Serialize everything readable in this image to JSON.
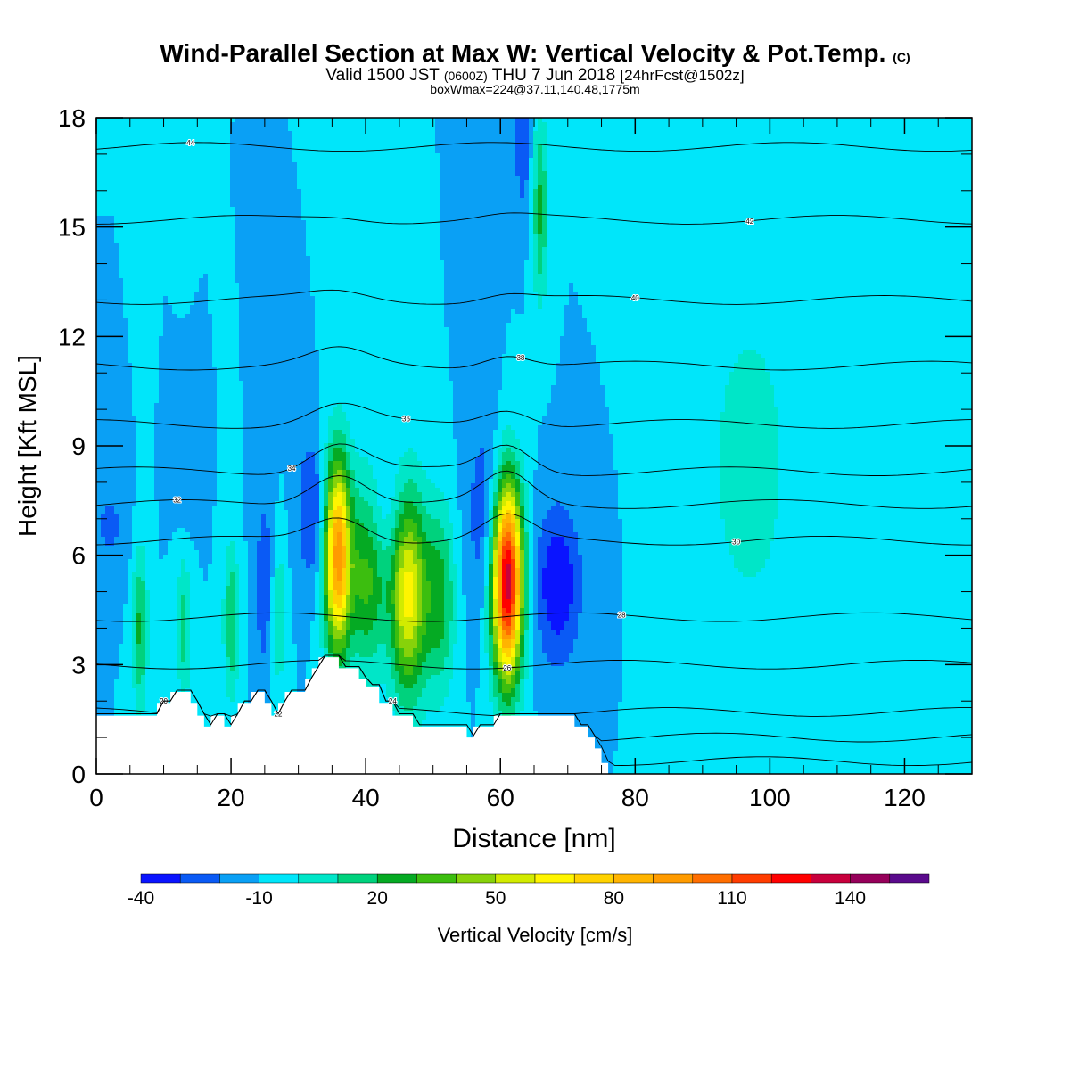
{
  "header": {
    "title": "Wind-Parallel Section at Max W: Vertical Velocity & Pot.Temp.",
    "title_mark": "(C)",
    "subtitle_pre": "Valid 1500 JST",
    "subtitle_zulu": "(0600Z)",
    "subtitle_date": "THU 7 Jun 2018",
    "subtitle_fcst": "[24hrFcst@1502z]",
    "subline": "boxWmax=224@37.11,140.48,1775m"
  },
  "chart_data": {
    "type": "heatmap",
    "xlabel": "Distance [nm]",
    "ylabel": "Height [Kft MSL]",
    "xlim": [
      0,
      130
    ],
    "ylim": [
      0,
      18
    ],
    "x_ticks": [
      0,
      20,
      40,
      60,
      80,
      100,
      120
    ],
    "y_ticks": [
      0,
      3,
      6,
      9,
      12,
      15,
      18
    ],
    "background_value": -10,
    "updraft_cores": [
      {
        "x": 35.8,
        "y": 6.0,
        "sx": 1.4,
        "sy": 1.9,
        "peak": 95
      },
      {
        "x": 40.2,
        "y": 5.6,
        "sx": 1.9,
        "sy": 1.9,
        "peak": 35
      },
      {
        "x": 46.3,
        "y": 5.0,
        "sx": 1.9,
        "sy": 2.0,
        "peak": 65
      },
      {
        "x": 51.0,
        "y": 4.8,
        "sx": 1.6,
        "sy": 1.8,
        "peak": 25
      },
      {
        "x": 61.0,
        "y": 5.3,
        "sx": 1.6,
        "sy": 1.9,
        "peak": 140
      }
    ],
    "weak_updraft_bands": [
      {
        "x": 6.5,
        "y": 4.0,
        "sx": 0.8,
        "sy": 1.6,
        "peak": 22
      },
      {
        "x": 13.0,
        "y": 4.0,
        "sx": 0.8,
        "sy": 1.4,
        "peak": 15
      },
      {
        "x": 20.0,
        "y": 4.2,
        "sx": 0.8,
        "sy": 1.5,
        "peak": 20
      },
      {
        "x": 27.0,
        "y": 4.3,
        "sx": 0.8,
        "sy": 1.4,
        "peak": 12
      },
      {
        "x": 65.9,
        "y": 15.5,
        "sx": 0.8,
        "sy": 1.8,
        "peak": 22
      },
      {
        "x": 97.0,
        "y": 8.5,
        "sx": 5.0,
        "sy": 3.5,
        "peak": 5
      }
    ],
    "downdraft_cores": [
      {
        "x": 68.5,
        "y": 5.2,
        "sx": 2.4,
        "sy": 1.5,
        "peak": -40
      },
      {
        "x": 32.0,
        "y": 7.2,
        "sx": 1.5,
        "sy": 1.4,
        "peak": -32
      },
      {
        "x": 42.5,
        "y": 7.0,
        "sx": 3.0,
        "sy": 1.1,
        "peak": -22
      },
      {
        "x": 58.0,
        "y": 7.0,
        "sx": 2.0,
        "sy": 2.0,
        "peak": -30
      },
      {
        "x": 25.0,
        "y": 5.2,
        "sx": 1.0,
        "sy": 1.8,
        "peak": -28
      },
      {
        "x": 63.3,
        "y": 17.4,
        "sx": 0.8,
        "sy": 1.4,
        "peak": -30
      },
      {
        "x": 2.0,
        "y": 6.8,
        "sx": 2.0,
        "sy": 1.0,
        "peak": -22
      },
      {
        "x": 13.5,
        "y": 7.8,
        "sx": 1.2,
        "sy": 0.8,
        "peak": -20
      }
    ],
    "theta_contours": [
      {
        "label": "20",
        "base_y": 0.35,
        "slope": 0.0,
        "bump": 0.0
      },
      {
        "label": "22",
        "base_y": 1.0,
        "slope": 0.0,
        "bump": 0.0
      },
      {
        "label": "24",
        "base_y": 1.7,
        "slope": 0.0,
        "bump": 0.0
      },
      {
        "label": "26",
        "base_y": 3.0,
        "slope": 0.0,
        "bump": 0.0
      },
      {
        "label": "28",
        "base_y": 4.3,
        "slope": 0.0,
        "bump": 0.0
      },
      {
        "label": "30",
        "base_y": 6.4,
        "slope": 0.0,
        "bump": 0.7
      },
      {
        "label": "32",
        "base_y": 7.4,
        "slope": 0.0,
        "bump": 0.9
      },
      {
        "label": "34",
        "base_y": 8.3,
        "slope": 0.0,
        "bump": 0.8
      },
      {
        "label": "36",
        "base_y": 9.6,
        "slope": 0.0,
        "bump": 0.5
      },
      {
        "label": "38",
        "base_y": 11.2,
        "slope": 0.0,
        "bump": 0.4
      },
      {
        "label": "40",
        "base_y": 13.0,
        "slope": 0.0,
        "bump": 0.2
      },
      {
        "label": "42",
        "base_y": 15.2,
        "slope": 0.0,
        "bump": 0.1
      },
      {
        "label": "44",
        "base_y": 17.2,
        "slope": 0.0,
        "bump": 0.0
      }
    ],
    "terrain": [
      [
        0,
        1.6
      ],
      [
        9,
        1.6
      ],
      [
        9,
        1.95
      ],
      [
        11,
        1.95
      ],
      [
        11,
        2.25
      ],
      [
        14,
        2.25
      ],
      [
        14,
        1.95
      ],
      [
        15,
        1.95
      ],
      [
        15,
        1.6
      ],
      [
        16,
        1.6
      ],
      [
        16,
        1.3
      ],
      [
        17,
        1.3
      ],
      [
        17,
        1.6
      ],
      [
        19,
        1.6
      ],
      [
        19,
        1.3
      ],
      [
        20,
        1.3
      ],
      [
        20,
        1.6
      ],
      [
        21,
        1.6
      ],
      [
        21,
        1.95
      ],
      [
        23,
        1.95
      ],
      [
        23,
        2.25
      ],
      [
        25,
        2.25
      ],
      [
        25,
        1.95
      ],
      [
        26,
        1.95
      ],
      [
        26,
        1.6
      ],
      [
        27,
        1.6
      ],
      [
        27,
        1.95
      ],
      [
        28,
        1.95
      ],
      [
        28,
        2.25
      ],
      [
        31,
        2.25
      ],
      [
        31,
        2.6
      ],
      [
        32,
        2.6
      ],
      [
        32,
        2.9
      ],
      [
        33,
        2.9
      ],
      [
        33,
        3.2
      ],
      [
        36,
        3.2
      ],
      [
        36,
        2.9
      ],
      [
        39,
        2.9
      ],
      [
        39,
        2.6
      ],
      [
        40,
        2.6
      ],
      [
        40,
        2.4
      ],
      [
        42,
        2.4
      ],
      [
        42,
        1.95
      ],
      [
        44,
        1.95
      ],
      [
        44,
        1.6
      ],
      [
        47,
        1.6
      ],
      [
        47,
        1.3
      ],
      [
        55,
        1.3
      ],
      [
        55,
        1.0
      ],
      [
        56,
        1.0
      ],
      [
        56,
        1.3
      ],
      [
        59,
        1.3
      ],
      [
        59,
        1.6
      ],
      [
        71,
        1.6
      ],
      [
        71,
        1.3
      ],
      [
        73,
        1.3
      ],
      [
        73,
        1.0
      ],
      [
        74,
        1.0
      ],
      [
        74,
        0.7
      ],
      [
        75,
        0.7
      ],
      [
        75,
        0.3
      ],
      [
        76,
        0.3
      ],
      [
        76,
        0.0
      ],
      [
        130,
        0.0
      ]
    ],
    "colorbar": {
      "title": "Vertical Velocity [cm/s]",
      "tick_labels": [
        "-40",
        "-10",
        "20",
        "50",
        "80",
        "110",
        "140"
      ],
      "tick_values": [
        -40,
        -10,
        20,
        50,
        80,
        110,
        140
      ],
      "min": -40,
      "max": 160,
      "step": 10,
      "colors": [
        "#0a14ff",
        "#0a5af5",
        "#0aa0f5",
        "#00e6fa",
        "#00e6c8",
        "#00d27d",
        "#05aa23",
        "#3cbe0f",
        "#87d20a",
        "#d2eb00",
        "#fff500",
        "#ffd200",
        "#ffb400",
        "#ff9b00",
        "#ff6e00",
        "#ff3c00",
        "#ff0000",
        "#c8003c",
        "#96005a",
        "#5a0a8c"
      ]
    }
  }
}
